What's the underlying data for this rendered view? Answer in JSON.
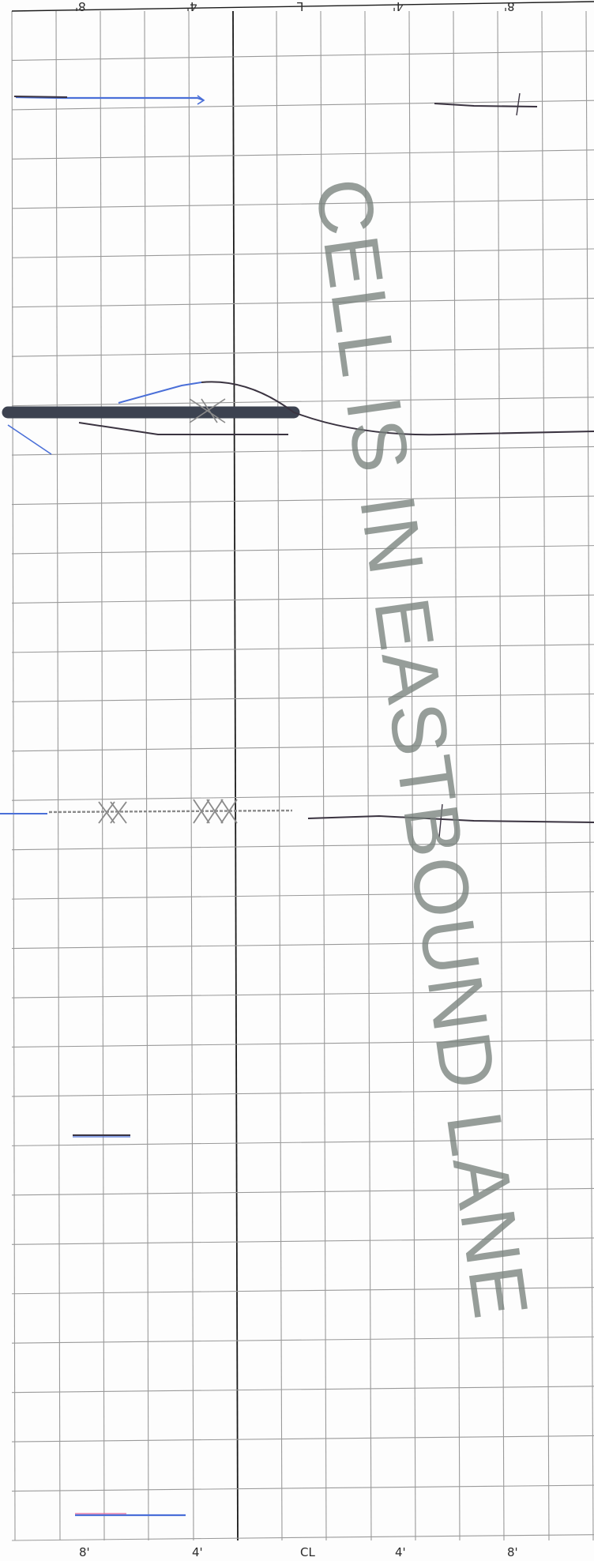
{
  "grid": {
    "top_axis_labels": [
      "8'",
      "4'",
      "L",
      "4'",
      "8'"
    ],
    "bottom_axis_labels": [
      "8'",
      "4'",
      "CL",
      "4'",
      "8'"
    ]
  },
  "watermark": {
    "text": "CELL IS IN EASTBOUND LANE"
  },
  "colors": {
    "grid_line": "#9a9a9a",
    "center_line": "#1a1a1a",
    "ink_dark": "#3a3340",
    "ink_blue": "#4a6fd8",
    "ink_pink": "#e36a9a",
    "dark_band": "#3c4250",
    "pencil": "#8a8a8a",
    "watermark": "#78827c"
  }
}
